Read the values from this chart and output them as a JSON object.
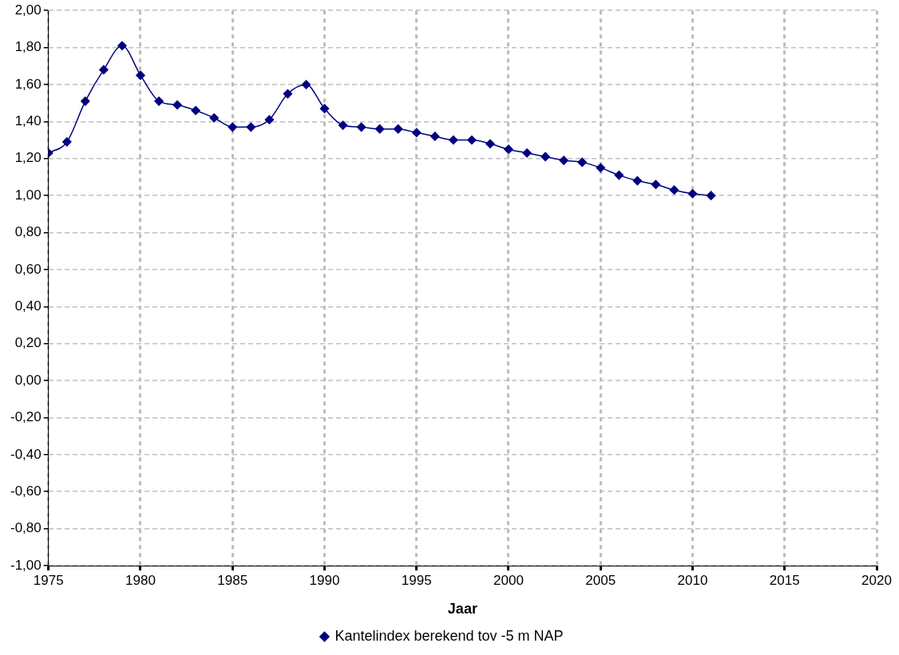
{
  "chart_data": {
    "type": "line",
    "xlabel": "Jaar",
    "x": [
      1975,
      1976,
      1977,
      1978,
      1979,
      1980,
      1981,
      1982,
      1983,
      1984,
      1985,
      1986,
      1987,
      1988,
      1989,
      1990,
      1991,
      1992,
      1993,
      1994,
      1995,
      1996,
      1997,
      1998,
      1999,
      2000,
      2001,
      2002,
      2003,
      2004,
      2005,
      2006,
      2007,
      2008,
      2009,
      2010,
      2011
    ],
    "series": [
      {
        "name": "Kantelindex berekend tov -5 m NAP",
        "color": "#000080",
        "values": [
          1.23,
          1.29,
          1.51,
          1.68,
          1.81,
          1.65,
          1.51,
          1.49,
          1.46,
          1.42,
          1.37,
          1.37,
          1.41,
          1.55,
          1.6,
          1.47,
          1.38,
          1.37,
          1.36,
          1.36,
          1.34,
          1.32,
          1.3,
          1.3,
          1.28,
          1.25,
          1.23,
          1.21,
          1.19,
          1.18,
          1.15,
          1.11,
          1.08,
          1.06,
          1.03,
          1.01,
          1.0
        ]
      }
    ],
    "xlim": [
      1975,
      2020
    ],
    "xticks": [
      1975,
      1980,
      1985,
      1990,
      1995,
      2000,
      2005,
      2010,
      2015,
      2020
    ],
    "ylim": [
      -1,
      2
    ],
    "yticks": [
      {
        "value": -1,
        "label": "-1,00"
      },
      {
        "value": -0.8,
        "label": "-0,80"
      },
      {
        "value": -0.6,
        "label": "-0,60"
      },
      {
        "value": -0.4,
        "label": "-0,40"
      },
      {
        "value": -0.2,
        "label": "-0,20"
      },
      {
        "value": 0,
        "label": "0,00"
      },
      {
        "value": 0.2,
        "label": "0,20"
      },
      {
        "value": 0.4,
        "label": "0,40"
      },
      {
        "value": 0.6,
        "label": "0,60"
      },
      {
        "value": 0.8,
        "label": "0,80"
      },
      {
        "value": 1,
        "label": "1,00"
      },
      {
        "value": 1.2,
        "label": "1,20"
      },
      {
        "value": 1.4,
        "label": "1,40"
      },
      {
        "value": 1.6,
        "label": "1,60"
      },
      {
        "value": 1.8,
        "label": "1,80"
      },
      {
        "value": 2,
        "label": "2,00"
      }
    ],
    "grid": true,
    "legend": "bottom",
    "marker": "diamond",
    "line_style": "solid"
  }
}
